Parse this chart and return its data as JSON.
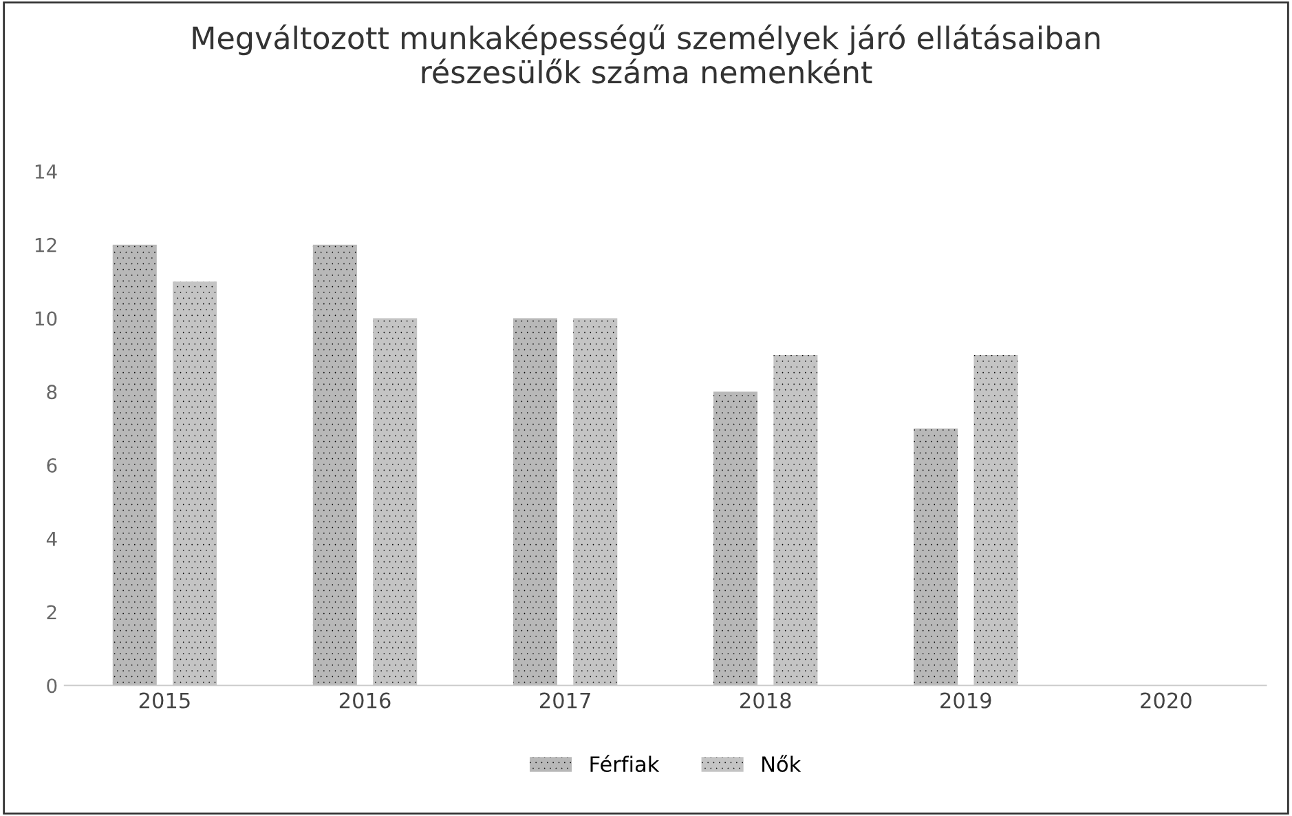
{
  "chart_data": {
    "type": "bar",
    "title": "Megváltozott munkaképességű személyek járó ellátásaiban\nrészesülők száma nemenként",
    "categories": [
      "2015",
      "2016",
      "2017",
      "2018",
      "2019",
      "2020"
    ],
    "series": [
      {
        "name": "Férfiak",
        "color": "#b8b8b8",
        "values": [
          12,
          12,
          10,
          8,
          7,
          null
        ]
      },
      {
        "name": "Nők",
        "color": "#c4c4c4",
        "values": [
          11,
          10,
          10,
          9,
          9,
          null
        ]
      }
    ],
    "ylim": [
      0,
      14
    ],
    "yticks": [
      0,
      2,
      4,
      6,
      8,
      10,
      12,
      14
    ],
    "grid": false,
    "legend": "bottom"
  }
}
